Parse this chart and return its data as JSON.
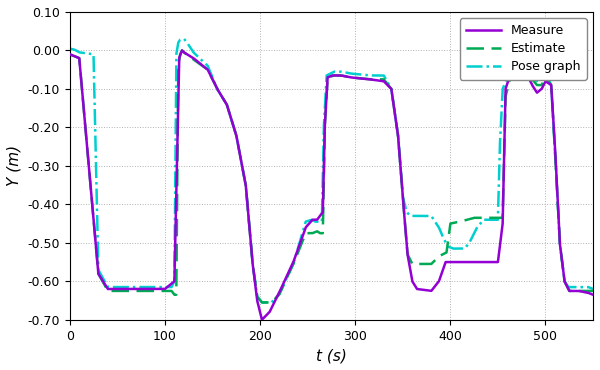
{
  "title": "",
  "xlabel": "t (s)",
  "ylabel": "Y (m)",
  "xlim": [
    0,
    550
  ],
  "ylim": [
    -0.7,
    0.1
  ],
  "yticks": [
    0.1,
    0.0,
    -0.1,
    -0.2,
    -0.3,
    -0.4,
    -0.5,
    -0.6,
    -0.7
  ],
  "xticks": [
    0,
    100,
    200,
    300,
    400,
    500
  ],
  "legend_labels": [
    "Measure",
    "Estimate",
    "Pose graph"
  ],
  "measure_color": "#9400D3",
  "estimate_color": "#00AA55",
  "posegraph_color": "#00CFCF",
  "measure_lw": 1.8,
  "estimate_lw": 1.8,
  "posegraph_lw": 1.8,
  "background_color": "#ffffff",
  "grid_color": "#aaaaaa"
}
